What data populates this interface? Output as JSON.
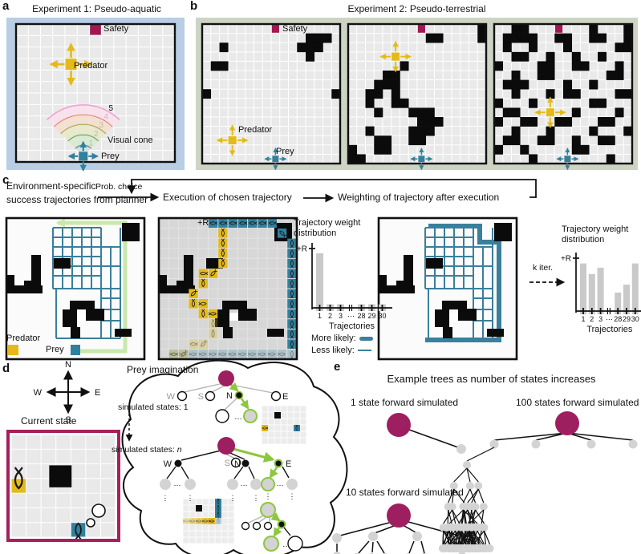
{
  "colors": {
    "safety": "#a01850",
    "magenta": "#9e1f60",
    "state_border": "#a6205b",
    "predator": "#e4ba1a",
    "prey": "#31809e",
    "panel_a_bg": "#b9cee4",
    "panel_b_bg": "#cdd4c4",
    "cell": "#e9e9e9",
    "exec_bg": "#e3e3e3",
    "exec_cell": "#d7d7d7",
    "trajectory": "#3a7f9b",
    "green_path": "#c9e7ad",
    "green_arrow": "#8dc63f",
    "bar": "#c9c9c9",
    "node_gray": "#d3d3d3",
    "black": "#0b0b0b"
  },
  "glyphs": {
    "hdots": "⋯",
    "vdots": "⋮",
    "ellipsis": "…"
  },
  "panels": {
    "a": {
      "label": "a",
      "title": "Experiment 1: Pseudo-aquatic",
      "safety": "Safety",
      "predator": "Predator",
      "prey": "Prey",
      "visual_cone": "Visual cone",
      "cone_rings": [
        "1",
        "2",
        "3",
        "4",
        "5"
      ],
      "grid": {
        "cols": 13,
        "rows": 12,
        "map": [
          "......S......",
          ".............",
          ".............",
          "....P........",
          ".............",
          ".............",
          ".............",
          ".............",
          ".............",
          ".............",
          ".............",
          ".....Y......."
        ]
      }
    },
    "b": {
      "label": "b",
      "title": "Experiment 2: Pseudo-terrestrial",
      "safety": "Safety",
      "predator": "Predator",
      "prey": "Prey",
      "grids": [
        {
          "cols": 16,
          "rows": 15,
          "map": [
            "........S.......",
            "............###.",
            "..#........###..",
            "............#...",
            ".##.............",
            "................",
            "................",
            "#..............#",
            "................",
            "................",
            "................",
            "................",
            "...P............",
            "................",
            "........Y......."
          ]
        },
        {
          "cols": 16,
          "rows": 15,
          "map": [
            "........S......#",
            ".........##....#",
            "................",
            ".....P..........",
            "......#.........",
            "....##..........",
            "...###..........",
            "..##.#..........",
            "..#..##.........",
            "...#...###......",
            "........###.....",
            "..#....###......",
            "...##..##.......",
            "#..##...........",
            "##......Y......."
          ]
        },
        {
          "cols": 16,
          "rows": 15,
          "map": [
            "..##...S...#...#",
            ".####..##..##..#",
            ".#..#...#.....##",
            "..##..#..#..#...",
            "#....##..##...#.",
            "..#..##......##.",
            ".###....#..#....",
            "..#...#.##....##",
            "#...#......##...",
            ".##...P..#....#.",
            "#..##..##...##..",
            "..#...#....#...#",
            ".##..##..#..##..",
            "#..#.....##.....",
            "....#...Y....#.."
          ]
        }
      ]
    },
    "c": {
      "label": "c",
      "step1_line1": "Environment-specific",
      "step1_line2": "success trajectories from planner",
      "prob_choice": "Prob. choice",
      "step2": "Execution of chosen trajectory",
      "step3": "Weighting of trajectory after execution",
      "plus_r": "+R",
      "k_iter": "k iter.",
      "predator": "Predator",
      "prey": "Prey",
      "more_likely": "More likely:",
      "less_likely": "Less likely:"
    },
    "d": {
      "label": "d",
      "compass": {
        "n": "N",
        "w": "W",
        "e": "E",
        "s": "S"
      },
      "current_state": "Current state",
      "imagination": "Prey imagination",
      "sim_1": "simulated states: 1",
      "sim_n_prefix": "simulated states: ",
      "sim_n_var": "n",
      "directions": [
        "W",
        "S",
        "N",
        "E"
      ]
    },
    "e": {
      "label": "e",
      "title": "Example trees as number of states increases",
      "t1": "1 state forward simulated",
      "t10": "10 states forward simulated",
      "t100": "100 states forward simulated"
    }
  },
  "chart_data": [
    {
      "type": "bar",
      "title": "Trajectory weight distribution",
      "title_lines": [
        "Trajectory weight",
        "distribution"
      ],
      "ylabel": "+R",
      "xlabel": "Trajectories",
      "categories": [
        "1",
        "2",
        "3",
        "⋯",
        "28",
        "29",
        "30"
      ],
      "values": [
        0.92,
        0.06,
        0.06,
        null,
        0.06,
        0.06,
        0.06
      ],
      "ylim": [
        0,
        1
      ],
      "legend_position": "below",
      "grid": false
    },
    {
      "type": "bar",
      "title": "Trajectory weight distribution",
      "title_lines": [
        "Trajectory weight",
        "distribution"
      ],
      "ylabel": "+R",
      "xlabel": "Trajectories",
      "categories": [
        "1",
        "2",
        "3",
        "⋯",
        "28",
        "29",
        "30"
      ],
      "values": [
        0.9,
        0.7,
        0.82,
        null,
        0.35,
        0.5,
        0.9
      ],
      "ylim": [
        0,
        1
      ],
      "grid": false
    }
  ]
}
